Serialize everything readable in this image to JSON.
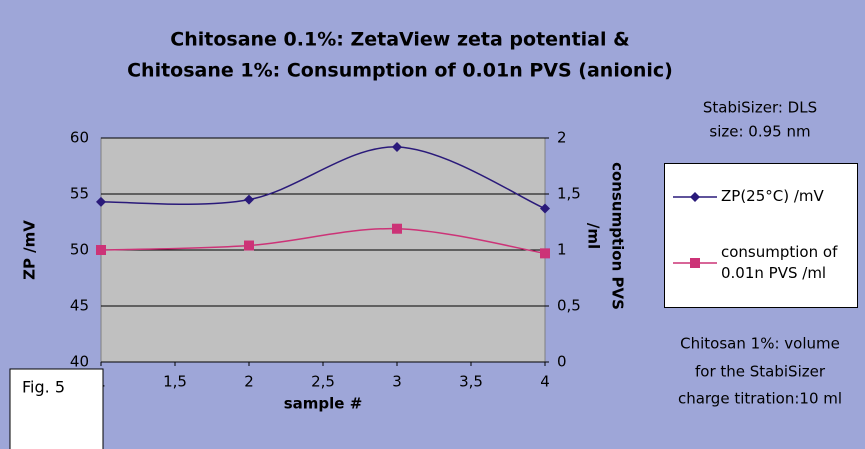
{
  "chart_data": {
    "type": "line",
    "title": [
      "Chitosane 0.1%: ZetaView zeta potential &",
      "Chitosane 1%: Consumption of 0.01n PVS (anionic)"
    ],
    "xlabel": "sample #",
    "ylabel": "ZP /mV",
    "y2label": [
      "consumption PVS",
      "/ml"
    ],
    "x": [
      1,
      2,
      3,
      4
    ],
    "series": [
      {
        "name": "ZP(25°C) /mV",
        "color": "#2a1a7a",
        "marker": "diamond",
        "values": [
          54.3,
          54.5,
          59.2,
          53.7
        ]
      },
      {
        "name": "consumption of 0.01n PVS /ml",
        "color": "#cc3377",
        "marker": "square",
        "axis": "y2",
        "values": [
          1.0,
          1.04,
          1.19,
          0.97
        ]
      }
    ],
    "xlim": [
      1,
      4
    ],
    "xticks": [
      1,
      {
        "value": 1.5,
        "label": "1,5"
      },
      2,
      {
        "value": 2.5,
        "label": "2,5"
      },
      3,
      {
        "value": 3.5,
        "label": "3,5"
      },
      4
    ],
    "ylim": [
      40,
      60
    ],
    "yticks": [
      40,
      45,
      50,
      55,
      60
    ],
    "y2lim": [
      0,
      2
    ],
    "y2ticks": [
      0,
      {
        "value": 0.5,
        "label": "0,5"
      },
      1,
      {
        "value": 1.5,
        "label": "1,5"
      },
      2
    ],
    "grid": true,
    "smooth": true,
    "legend": "right",
    "annotations": [
      "StabiSizer: DLS",
      "size: 0.95 nm",
      "Chitosan 1%: volume",
      "for the StabiSizer",
      "charge titration:10 ml",
      "Fig. 5"
    ]
  }
}
